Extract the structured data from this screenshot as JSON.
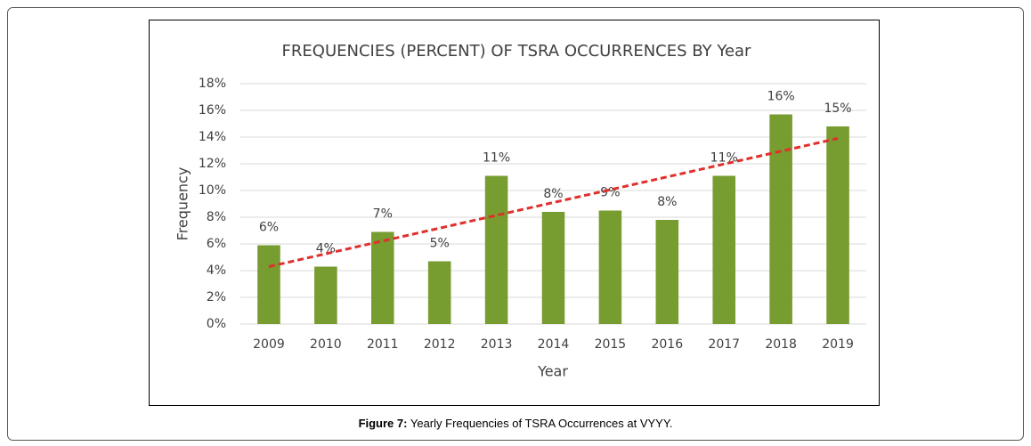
{
  "chart_data": {
    "type": "bar",
    "title": "FREQUENCIES (PERCENT) OF TSRA OCCURRENCES  BY Year",
    "x_label": "Year",
    "y_label": "Frequency",
    "categories": [
      "2009",
      "2010",
      "2011",
      "2012",
      "2013",
      "2014",
      "2015",
      "2016",
      "2017",
      "2018",
      "2019"
    ],
    "values": [
      5.9,
      4.3,
      6.9,
      4.7,
      11.1,
      8.4,
      8.5,
      7.8,
      11.1,
      15.7,
      14.8
    ],
    "value_labels": [
      "6%",
      "4%",
      "7%",
      "5%",
      "11%",
      "8%",
      "9%",
      "8%",
      "11%",
      "16%",
      "15%"
    ],
    "color": "#779c30",
    "ylim": [
      0,
      18
    ],
    "yticks": [
      {
        "value": 0,
        "label": "0%"
      },
      {
        "value": 2,
        "label": "2%"
      },
      {
        "value": 4,
        "label": "4%"
      },
      {
        "value": 6,
        "label": "6%"
      },
      {
        "value": 8,
        "label": "8%"
      },
      {
        "value": 10,
        "label": "10%"
      },
      {
        "value": 12,
        "label": "12%"
      },
      {
        "value": 14,
        "label": "14%"
      },
      {
        "value": 16,
        "label": "16%"
      },
      {
        "value": 18,
        "label": "18%"
      }
    ],
    "grid": true,
    "trendline": {
      "start": 4.3,
      "end": 13.9,
      "color": "#e0302c"
    }
  },
  "caption": {
    "label": "Figure 7:",
    "text": "Yearly Frequencies of TSRA Occurrences at VYYY."
  }
}
